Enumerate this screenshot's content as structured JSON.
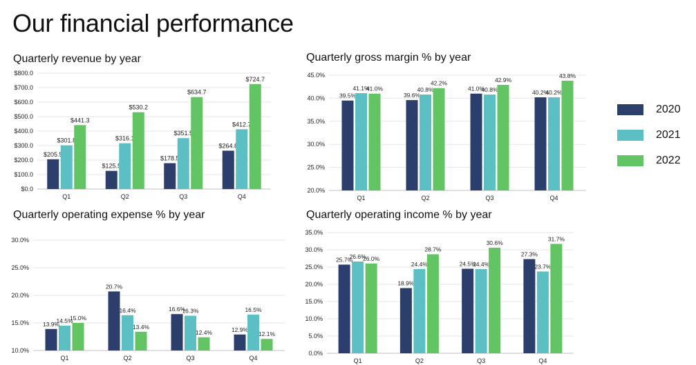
{
  "page": {
    "title": "Our financial performance"
  },
  "legend": {
    "items": [
      {
        "label": "2020",
        "color": "#2c3e6b"
      },
      {
        "label": "2021",
        "color": "#5bbfc4"
      },
      {
        "label": "2022",
        "color": "#62c462"
      }
    ]
  },
  "chart_data": [
    {
      "type": "bar",
      "title": "Quarterly revenue by year",
      "categories": [
        "Q1",
        "Q2",
        "Q3",
        "Q4"
      ],
      "series": [
        {
          "name": "2020",
          "values": [
            205.5,
            125.5,
            178.5,
            264.8
          ],
          "labels": [
            "$205.5",
            "$125.5",
            "$178.5",
            "$264.8"
          ]
        },
        {
          "name": "2021",
          "values": [
            301.8,
            316.1,
            351.5,
            412.7
          ],
          "labels": [
            "$301.8",
            "$316.1",
            "$351.5",
            "$412.7"
          ]
        },
        {
          "name": "2022",
          "values": [
            441.3,
            530.2,
            634.7,
            724.7
          ],
          "labels": [
            "$441.3",
            "$530.2",
            "$634.7",
            "$724.7"
          ]
        }
      ],
      "ylim": [
        0,
        800
      ],
      "yticks": [
        "$0.0",
        "$100.0",
        "$200.0",
        "$300.0",
        "$400.0",
        "$500.0",
        "$600.0",
        "$700.0",
        "$800.0"
      ],
      "grid": true
    },
    {
      "type": "bar",
      "title": "Quarterly gross margin % by year",
      "categories": [
        "Q1",
        "Q2",
        "Q3",
        "Q4"
      ],
      "series": [
        {
          "name": "2020",
          "values": [
            39.5,
            39.6,
            41.0,
            40.2
          ],
          "labels": [
            "39.5%",
            "39.6%",
            "41.0%",
            "40.2%"
          ]
        },
        {
          "name": "2021",
          "values": [
            41.1,
            40.8,
            40.8,
            40.2
          ],
          "labels": [
            "41.1%",
            "40.8%",
            "40.8%",
            "40.2%"
          ]
        },
        {
          "name": "2022",
          "values": [
            41.0,
            42.2,
            42.9,
            43.8
          ],
          "labels": [
            "41.0%",
            "42.2%",
            "42.9%",
            "43.8%"
          ]
        }
      ],
      "ylim": [
        20,
        45
      ],
      "yticks": [
        "20.0%",
        "25.0%",
        "30.0%",
        "35.0%",
        "40.0%",
        "45.0%"
      ],
      "grid": true
    },
    {
      "type": "bar",
      "title": "Quarterly operating expense % by year",
      "categories": [
        "Q1",
        "Q2",
        "Q3",
        "Q4"
      ],
      "series": [
        {
          "name": "2020",
          "values": [
            13.9,
            20.7,
            16.6,
            12.9
          ],
          "labels": [
            "13.9%",
            "20.7%",
            "16.6%",
            "12.9%"
          ]
        },
        {
          "name": "2021",
          "values": [
            14.5,
            16.4,
            16.3,
            16.5
          ],
          "labels": [
            "14.5%",
            "16.4%",
            "16.3%",
            "16.5%"
          ]
        },
        {
          "name": "2022",
          "values": [
            15.0,
            13.4,
            12.4,
            12.1
          ],
          "labels": [
            "15.0%",
            "13.4%",
            "12.4%",
            "12.1%"
          ]
        }
      ],
      "ylim": [
        10,
        30
      ],
      "yticks": [
        "10.0%",
        "15.0%",
        "20.0%",
        "25.0%",
        "30.0%"
      ],
      "grid": true
    },
    {
      "type": "bar",
      "title": "Quarterly operating income % by year",
      "categories": [
        "Q1",
        "Q2",
        "Q3",
        "Q4"
      ],
      "series": [
        {
          "name": "2020",
          "values": [
            25.7,
            18.9,
            24.5,
            27.3
          ],
          "labels": [
            "25.7%",
            "18.9%",
            "24.5%",
            "27.3%"
          ]
        },
        {
          "name": "2021",
          "values": [
            26.6,
            24.4,
            24.4,
            23.7
          ],
          "labels": [
            "26.6%",
            "24.4%",
            "24.4%",
            "23.7%"
          ]
        },
        {
          "name": "2022",
          "values": [
            26.0,
            28.7,
            30.6,
            31.7
          ],
          "labels": [
            "26.0%",
            "28.7%",
            "30.6%",
            "31.7%"
          ]
        }
      ],
      "ylim": [
        0,
        35
      ],
      "yticks": [
        "0.0%",
        "5.0%",
        "10.0%",
        "15.0%",
        "20.0%",
        "25.0%",
        "30.0%",
        "35.0%"
      ],
      "grid": true
    }
  ]
}
